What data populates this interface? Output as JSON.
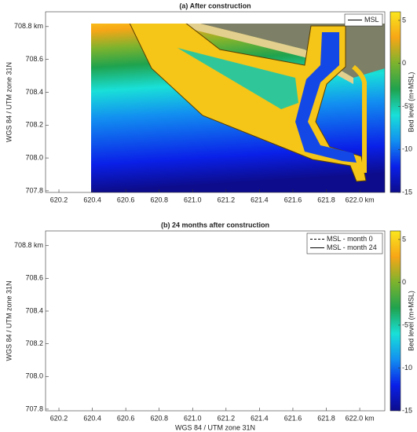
{
  "chart_data": [
    {
      "type": "map",
      "title": "(a) After construction",
      "ylabel": "WGS 84 / UTM zone 31N",
      "xlim": [
        620.12,
        622.15
      ],
      "ylim": [
        707.79,
        708.89
      ],
      "xticks": [
        620.2,
        620.4,
        620.6,
        620.8,
        {
          "value": 621,
          "label": "621.0"
        },
        621.2,
        621.4,
        621.6,
        621.8,
        {
          "value": 622,
          "label": "622.0 km"
        }
      ],
      "yticks": [
        707.8,
        {
          "value": 708,
          "label": "708.0"
        },
        708.2,
        708.4,
        708.6,
        {
          "value": 708.8,
          "label": "708.8 km"
        }
      ],
      "colorbar": {
        "label": "Bed level (m+MSL)",
        "lim": [
          -15,
          6
        ],
        "ticks": [
          5,
          0,
          -5,
          -10,
          -15
        ],
        "colormap": [
          "#fae61e",
          "#f7a616",
          "#7cb32e",
          "#1fa34e",
          "#19e0d8",
          "#1290f0",
          "#0a20e8",
          "#0c0c8c"
        ]
      },
      "legend_corner": "upper right",
      "legend": [
        {
          "name": "MSL",
          "color": "#000000",
          "dashed": false
        }
      ]
    },
    {
      "type": "map",
      "title": "(b) 24 months after construction",
      "ylabel": "WGS 84 / UTM zone 31N",
      "xlabel": "WGS 84 / UTM zone 31N",
      "xlim": [
        620.12,
        622.15
      ],
      "ylim": [
        707.79,
        708.89
      ],
      "xticks": [
        620.2,
        620.4,
        620.6,
        620.8,
        {
          "value": 621,
          "label": "621.0"
        },
        621.2,
        621.4,
        621.6,
        621.8,
        {
          "value": 622,
          "label": "622.0 km"
        }
      ],
      "yticks": [
        707.8,
        {
          "value": 708,
          "label": "708.0"
        },
        708.2,
        708.4,
        708.6,
        {
          "value": 708.8,
          "label": "708.8 km"
        }
      ],
      "colorbar": {
        "label": "Bed level (m+MSL)",
        "lim": [
          -15,
          6
        ],
        "ticks": [
          5,
          0,
          -5,
          -10,
          -15
        ],
        "colormap": [
          "#fae61e",
          "#f7a616",
          "#7cb32e",
          "#1fa34e",
          "#19e0d8",
          "#1290f0",
          "#0a20e8",
          "#0c0c8c"
        ]
      },
      "legend_corner": "upper right",
      "legend": [
        {
          "name": "MSL - month 0",
          "color": "#000000",
          "dashed": true
        },
        {
          "name": "MSL - month 24",
          "color": "#000000",
          "dashed": false
        }
      ]
    }
  ]
}
